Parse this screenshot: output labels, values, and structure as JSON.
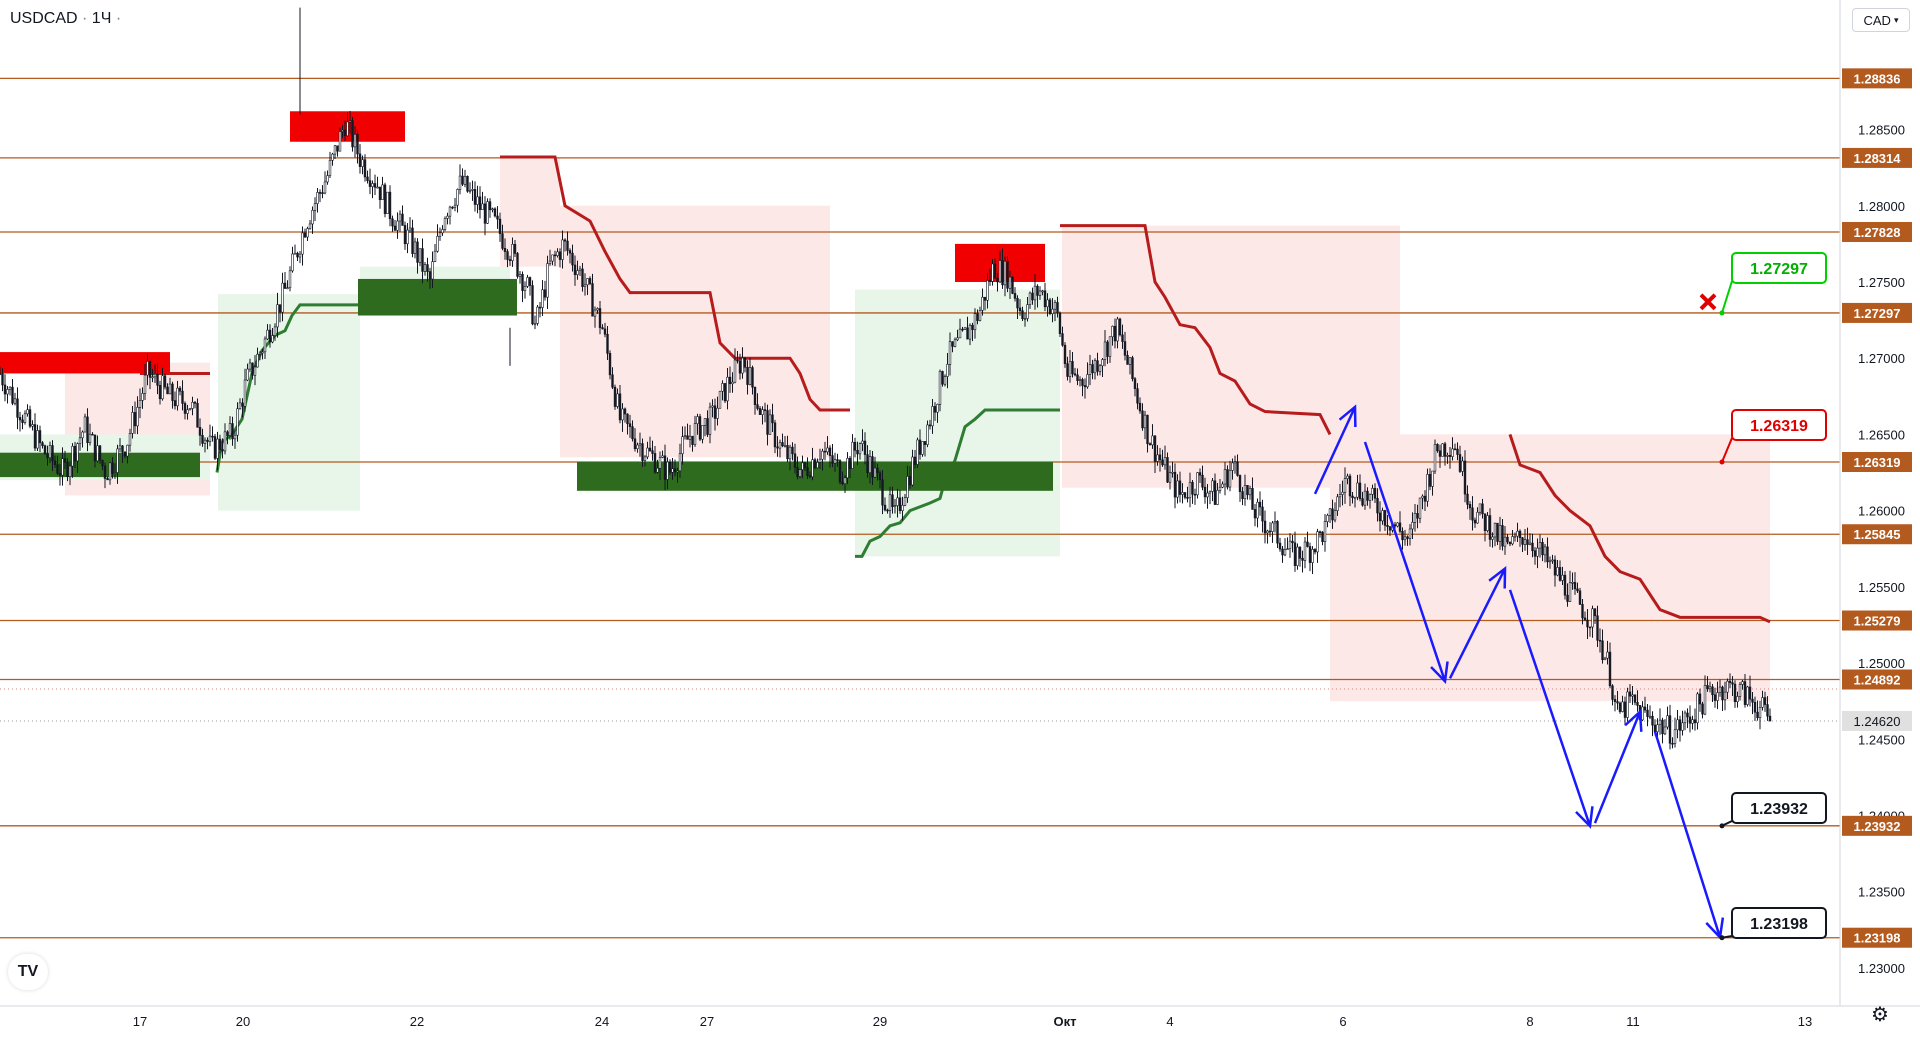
{
  "header": {
    "symbol": "USDCAD",
    "interval": "1Ч",
    "currency": "CAD"
  },
  "chart_data": {
    "type": "candlestick",
    "symbol": "USDCAD",
    "timeframe": "1H",
    "ylim": [
      1.2275,
      1.2935
    ],
    "x_ticks": [
      "17",
      "20",
      "22",
      "24",
      "27",
      "29",
      "Окт",
      "4",
      "6",
      "8",
      "11",
      "13"
    ],
    "y_ticks": [
      "1.28500",
      "1.28000",
      "1.27500",
      "1.27000",
      "1.26500",
      "1.26000",
      "1.25500",
      "1.25000",
      "1.24500",
      "1.24000",
      "1.23500",
      "1.23000"
    ],
    "current_price": "1.24620",
    "horizontal_levels": [
      {
        "value": 1.28836,
        "label": "1.28836"
      },
      {
        "value": 1.28314,
        "label": "1.28314"
      },
      {
        "value": 1.27828,
        "label": "1.27828"
      },
      {
        "value": 1.27297,
        "label": "1.27297"
      },
      {
        "value": 1.26319,
        "label": "1.26319"
      },
      {
        "value": 1.25845,
        "label": "1.25845"
      },
      {
        "value": 1.25279,
        "label": "1.25279"
      },
      {
        "value": 1.24892,
        "label": "1.24892"
      },
      {
        "value": 1.23932,
        "label": "1.23932"
      },
      {
        "value": 1.23198,
        "label": "1.23198"
      }
    ],
    "callouts": [
      {
        "text": "1.27297",
        "value": 1.27297,
        "style": "green"
      },
      {
        "text": "1.26319",
        "value": 1.26319,
        "style": "red"
      },
      {
        "text": "1.23932",
        "value": 1.23932,
        "style": "black"
      },
      {
        "text": "1.23198",
        "value": 1.23198,
        "style": "black"
      }
    ],
    "price_path": [
      [
        0,
        1.269
      ],
      [
        12,
        1.2665
      ],
      [
        24,
        1.264
      ],
      [
        36,
        1.2625
      ],
      [
        48,
        1.2655
      ],
      [
        60,
        1.2625
      ],
      [
        72,
        1.2645
      ],
      [
        84,
        1.269
      ],
      [
        96,
        1.2675
      ],
      [
        108,
        1.267
      ],
      [
        120,
        1.264
      ],
      [
        132,
        1.265
      ],
      [
        140,
        1.2685
      ],
      [
        150,
        1.271
      ],
      [
        162,
        1.2745
      ],
      [
        174,
        1.279
      ],
      [
        186,
        1.282
      ],
      [
        196,
        1.2855
      ],
      [
        205,
        1.283
      ],
      [
        214,
        1.2815
      ],
      [
        222,
        1.2795
      ],
      [
        234,
        1.2775
      ],
      [
        244,
        1.275
      ],
      [
        252,
        1.2795
      ],
      [
        262,
        1.2815
      ],
      [
        272,
        1.28
      ],
      [
        280,
        1.279
      ],
      [
        290,
        1.277
      ],
      [
        300,
        1.2745
      ],
      [
        304,
        1.272
      ],
      [
        312,
        1.276
      ],
      [
        320,
        1.2775
      ],
      [
        330,
        1.2755
      ],
      [
        342,
        1.272
      ],
      [
        352,
        1.266
      ],
      [
        366,
        1.264
      ],
      [
        380,
        1.2625
      ],
      [
        392,
        1.265
      ],
      [
        404,
        1.266
      ],
      [
        414,
        1.2685
      ],
      [
        422,
        1.27
      ],
      [
        432,
        1.2665
      ],
      [
        444,
        1.264
      ],
      [
        456,
        1.2625
      ],
      [
        466,
        1.264
      ],
      [
        478,
        1.2625
      ],
      [
        488,
        1.2645
      ],
      [
        498,
        1.262
      ],
      [
        508,
        1.2595
      ],
      [
        518,
        1.263
      ],
      [
        528,
        1.266
      ],
      [
        538,
        1.27
      ],
      [
        548,
        1.2715
      ],
      [
        556,
        1.273
      ],
      [
        564,
        1.276
      ],
      [
        572,
        1.2755
      ],
      [
        580,
        1.273
      ],
      [
        590,
        1.2745
      ],
      [
        600,
        1.273
      ],
      [
        606,
        1.269
      ],
      [
        614,
        1.2685
      ],
      [
        624,
        1.27
      ],
      [
        634,
        1.272
      ],
      [
        642,
        1.269
      ],
      [
        652,
        1.265
      ],
      [
        660,
        1.263
      ],
      [
        670,
        1.261
      ],
      [
        680,
        1.262
      ],
      [
        690,
        1.261
      ],
      [
        700,
        1.263
      ],
      [
        712,
        1.26
      ],
      [
        724,
        1.2585
      ],
      [
        734,
        1.257
      ],
      [
        744,
        1.2575
      ],
      [
        754,
        1.259
      ],
      [
        764,
        1.262
      ],
      [
        776,
        1.261
      ],
      [
        788,
        1.2595
      ],
      [
        800,
        1.258
      ],
      [
        808,
        1.261
      ],
      [
        816,
        1.264
      ],
      [
        826,
        1.2645
      ],
      [
        836,
        1.26
      ],
      [
        846,
        1.259
      ],
      [
        856,
        1.2575
      ],
      [
        866,
        1.2585
      ],
      [
        876,
        1.257
      ],
      [
        886,
        1.2555
      ],
      [
        896,
        1.254
      ],
      [
        906,
        1.2525
      ],
      [
        914,
        1.2495
      ],
      [
        918,
        1.2465
      ],
      [
        926,
        1.2475
      ],
      [
        934,
        1.2465
      ],
      [
        942,
        1.246
      ],
      [
        950,
        1.2455
      ],
      [
        960,
        1.2465
      ],
      [
        970,
        1.248
      ],
      [
        980,
        1.2485
      ],
      [
        990,
        1.248
      ],
      [
        1000,
        1.247
      ],
      [
        1005,
        1.2462
      ]
    ],
    "series": [
      {
        "name": "1.28836",
        "values": []
      }
    ]
  }
}
